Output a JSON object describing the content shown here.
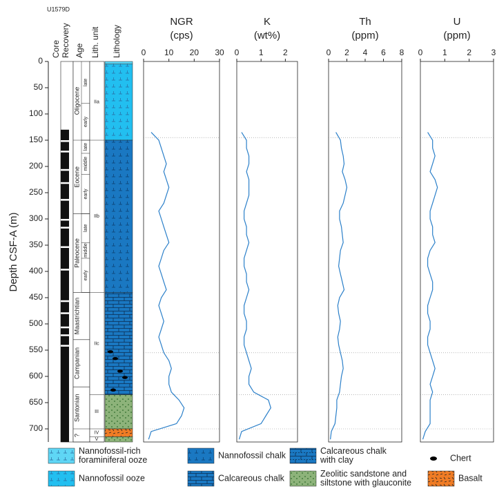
{
  "site": "U1579D",
  "depth_axis": {
    "label": "Depth CSF-A (m)",
    "ylim": [
      0,
      725
    ],
    "yticks": [
      0,
      50,
      100,
      150,
      200,
      250,
      300,
      350,
      400,
      450,
      500,
      550,
      600,
      650,
      700
    ]
  },
  "chart_data": [
    {
      "type": "line",
      "title": "NGR",
      "unit": "(cps)",
      "color": "#2a7fc9",
      "xlim": [
        0,
        30
      ],
      "xticks": [
        0,
        10,
        20,
        30
      ],
      "depth": [
        135,
        150,
        165,
        180,
        195,
        210,
        225,
        240,
        255,
        270,
        285,
        300,
        315,
        330,
        345,
        360,
        375,
        390,
        405,
        420,
        435,
        450,
        465,
        480,
        495,
        510,
        525,
        540,
        555,
        570,
        585,
        600,
        615,
        630,
        645,
        660,
        675,
        690,
        705,
        720
      ],
      "values": [
        3,
        6,
        7,
        8,
        9,
        8,
        9,
        10,
        9,
        8,
        6,
        7,
        8,
        9,
        10,
        8,
        7,
        6,
        7,
        8,
        9,
        7,
        6,
        7,
        8,
        7,
        6,
        7,
        8,
        10,
        11,
        10,
        10,
        11,
        14,
        16,
        15,
        13,
        3,
        2
      ]
    },
    {
      "type": "line",
      "title": "K",
      "unit": "(wt%)",
      "color": "#2a7fc9",
      "xlim": [
        0,
        2.5
      ],
      "xticks": [
        0,
        1,
        2
      ],
      "depth": [
        135,
        150,
        165,
        180,
        195,
        210,
        225,
        240,
        255,
        270,
        285,
        300,
        315,
        330,
        345,
        360,
        375,
        390,
        405,
        420,
        435,
        450,
        465,
        480,
        495,
        510,
        525,
        540,
        555,
        570,
        585,
        600,
        615,
        630,
        645,
        660,
        675,
        690,
        705,
        720
      ],
      "values": [
        0.2,
        0.4,
        0.4,
        0.5,
        0.5,
        0.4,
        0.5,
        0.5,
        0.5,
        0.4,
        0.3,
        0.3,
        0.4,
        0.4,
        0.5,
        0.4,
        0.3,
        0.3,
        0.4,
        0.4,
        0.5,
        0.4,
        0.3,
        0.3,
        0.4,
        0.4,
        0.3,
        0.3,
        0.4,
        0.5,
        0.6,
        0.5,
        0.5,
        0.7,
        1.3,
        1.4,
        1.2,
        1.0,
        0.2,
        0.1
      ]
    },
    {
      "type": "line",
      "title": "Th",
      "unit": "(ppm)",
      "color": "#2a7fc9",
      "xlim": [
        0,
        8
      ],
      "xticks": [
        0,
        2,
        4,
        6,
        8
      ],
      "depth": [
        135,
        150,
        165,
        180,
        195,
        210,
        225,
        240,
        255,
        270,
        285,
        300,
        315,
        330,
        345,
        360,
        375,
        390,
        405,
        420,
        435,
        450,
        465,
        480,
        495,
        510,
        525,
        540,
        555,
        570,
        585,
        600,
        615,
        630,
        645,
        660,
        675,
        690,
        705,
        720
      ],
      "values": [
        0.8,
        1.3,
        1.4,
        1.6,
        1.7,
        1.5,
        1.8,
        2,
        1.8,
        1.6,
        1.2,
        1.2,
        1.4,
        1.5,
        1.6,
        1.3,
        1.2,
        1.1,
        1.3,
        1.5,
        1.7,
        1.2,
        1.0,
        1.1,
        1.3,
        1.2,
        1.0,
        1.1,
        1.3,
        1.5,
        1.6,
        1.4,
        1.3,
        1.2,
        0.9,
        0.9,
        0.8,
        0.7,
        0.3,
        0.2
      ]
    },
    {
      "type": "line",
      "title": "U",
      "unit": "(ppm)",
      "color": "#2a7fc9",
      "xlim": [
        0,
        3
      ],
      "xticks": [
        0,
        1,
        2,
        3
      ],
      "depth": [
        135,
        150,
        165,
        180,
        195,
        210,
        225,
        240,
        255,
        270,
        285,
        300,
        315,
        330,
        345,
        360,
        375,
        390,
        405,
        420,
        435,
        450,
        465,
        480,
        495,
        510,
        525,
        540,
        555,
        570,
        585,
        600,
        615,
        630,
        645,
        660,
        675,
        690,
        705,
        720
      ],
      "values": [
        0.3,
        0.5,
        0.5,
        0.6,
        0.5,
        0.4,
        0.6,
        0.7,
        0.6,
        0.5,
        0.4,
        0.4,
        0.5,
        0.5,
        0.6,
        0.4,
        0.3,
        0.3,
        0.4,
        0.5,
        0.5,
        0.4,
        0.3,
        0.3,
        0.4,
        0.4,
        0.3,
        0.3,
        0.4,
        0.5,
        0.6,
        0.5,
        0.4,
        0.5,
        0.4,
        0.4,
        0.4,
        0.4,
        0.2,
        0.1
      ]
    }
  ],
  "stratigraphy": {
    "headers": [
      "Core",
      "Recovery",
      "Age",
      "Lith. unit",
      "Lithology"
    ],
    "epochs": [
      {
        "label": "Oligocene",
        "top": 0,
        "bottom": 150
      },
      {
        "label": "Eocene",
        "top": 150,
        "bottom": 290
      },
      {
        "label": "Paleocene",
        "top": 290,
        "bottom": 440
      },
      {
        "label": "Maastrichtian",
        "top": 440,
        "bottom": 530
      },
      {
        "label": "Campanian",
        "top": 530,
        "bottom": 620
      },
      {
        "label": "Santonian",
        "top": 620,
        "bottom": 700
      },
      {
        "label": "?",
        "top": 700,
        "bottom": 725
      }
    ],
    "subepochs": [
      {
        "label": "late",
        "top": 0,
        "bottom": 80
      },
      {
        "label": "early",
        "top": 80,
        "bottom": 150
      },
      {
        "label": "late",
        "top": 150,
        "bottom": 175
      },
      {
        "label": "middle",
        "top": 175,
        "bottom": 215
      },
      {
        "label": "early",
        "top": 215,
        "bottom": 290
      },
      {
        "label": "late",
        "top": 290,
        "bottom": 345
      },
      {
        "label": "middle",
        "top": 345,
        "bottom": 375
      },
      {
        "label": "early",
        "top": 375,
        "bottom": 440
      }
    ],
    "units": [
      {
        "label": "IIa",
        "top": 5,
        "bottom": 150
      },
      {
        "label": "IIb",
        "top": 150,
        "bottom": 440
      },
      {
        "label": "IIc",
        "top": 440,
        "bottom": 635
      },
      {
        "label": "III",
        "top": 635,
        "bottom": 700
      },
      {
        "label": "IV",
        "top": 700,
        "bottom": 715
      },
      {
        "label": "V",
        "top": 715,
        "bottom": 725
      }
    ],
    "lithology": [
      {
        "legend": 0,
        "top": 0,
        "bottom": 5
      },
      {
        "legend": 4,
        "top": 5,
        "bottom": 150
      },
      {
        "legend": 1,
        "top": 150,
        "bottom": 440
      },
      {
        "legend": 5,
        "top": 440,
        "bottom": 635
      },
      {
        "legend": 6,
        "top": 635,
        "bottom": 700
      },
      {
        "legend": 7,
        "top": 700,
        "bottom": 715
      },
      {
        "legend": 6,
        "top": 715,
        "bottom": 725
      }
    ],
    "cherts": [
      553,
      566,
      590,
      602,
      626
    ],
    "dotted": [
      145,
      555,
      635,
      700
    ]
  },
  "legend": {
    "items": [
      {
        "lines": [
          "Nannofossil-rich",
          "foraminiferal ooze"
        ],
        "color": "#5fd6f5",
        "pattern": "ooze"
      },
      {
        "lines": [
          "Nannofossil chalk"
        ],
        "color": "#1a78c2",
        "pattern": "chalk"
      },
      {
        "lines": [
          "Calcareous chalk",
          "with clay"
        ],
        "color": "#1a78c2",
        "pattern": "brickclay"
      },
      {
        "lines": [
          "Chert"
        ],
        "color": "#000000",
        "pattern": "chert"
      },
      {
        "lines": [
          "Nannofossil ooze"
        ],
        "color": "#22bff0",
        "pattern": "ooze"
      },
      {
        "lines": [
          "Calcareous chalk"
        ],
        "color": "#1a78c2",
        "pattern": "brick"
      },
      {
        "lines": [
          "Zeolitic sandstone and",
          "siltstone with glauconite"
        ],
        "color": "#8db37a",
        "pattern": "dots"
      },
      {
        "lines": [
          "Basalt"
        ],
        "color": "#f07c25",
        "pattern": "dash"
      }
    ]
  }
}
